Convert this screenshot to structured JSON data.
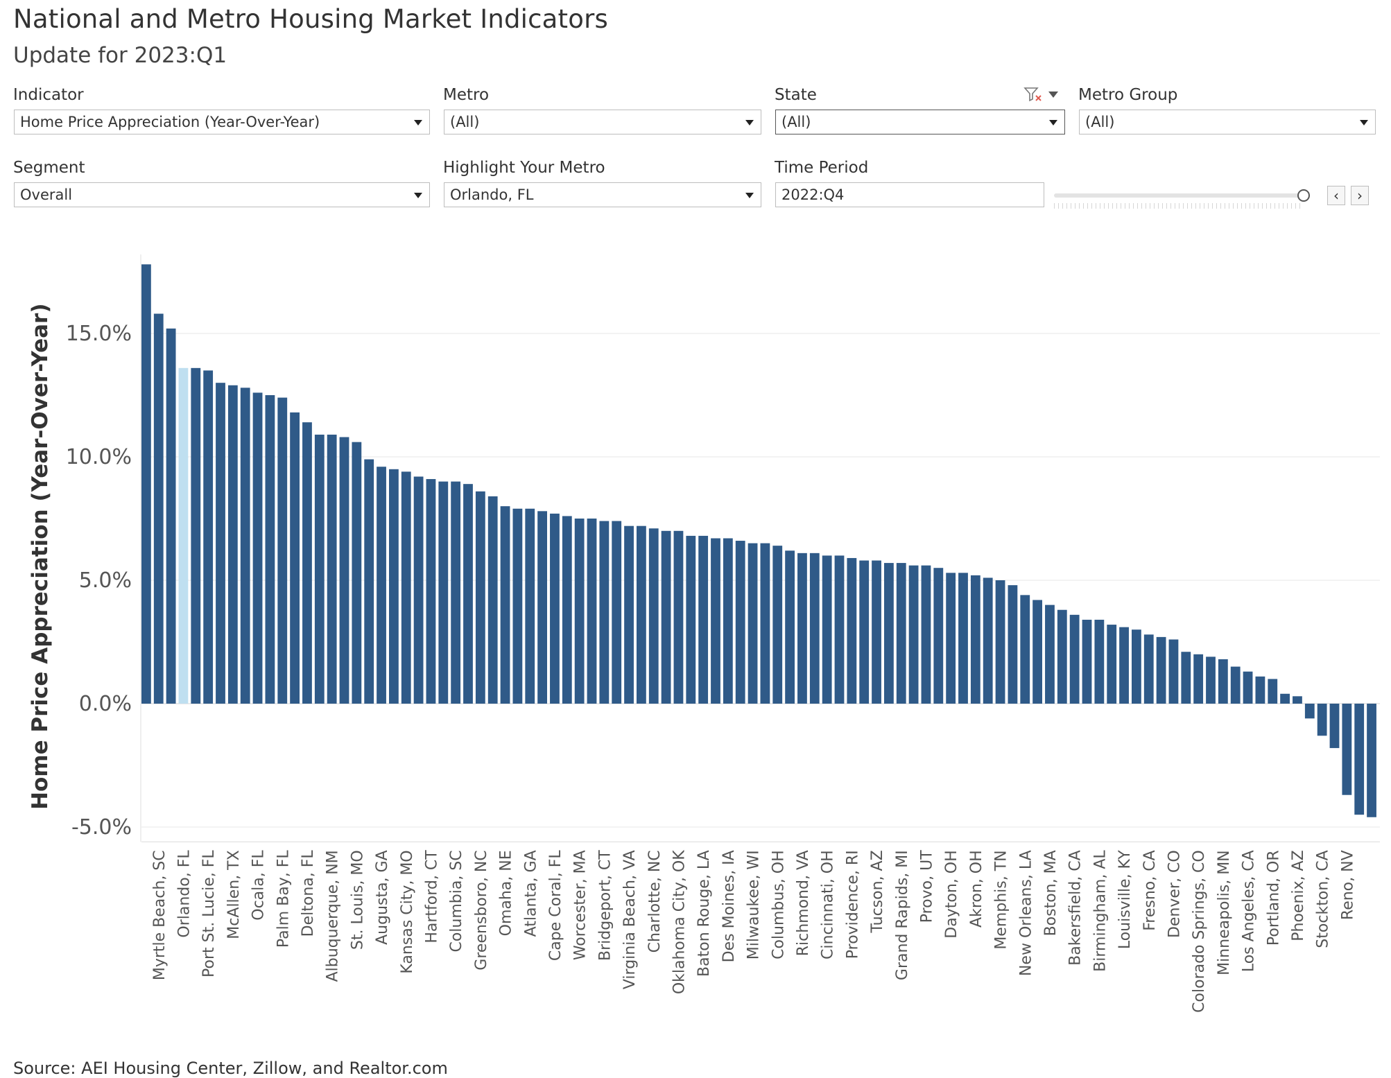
{
  "header": {
    "title": "National and Metro Housing Market Indicators",
    "subtitle": "Update for 2023:Q1"
  },
  "filters": {
    "indicator": {
      "label": "Indicator",
      "value": "Home Price Appreciation (Year-Over-Year)"
    },
    "metro": {
      "label": "Metro",
      "value": "(All)"
    },
    "state": {
      "label": "State",
      "value": "(All)"
    },
    "metro_group": {
      "label": "Metro Group",
      "value": "(All)"
    },
    "segment": {
      "label": "Segment",
      "value": "Overall"
    },
    "highlight": {
      "label": "Highlight Your Metro",
      "value": "Orlando, FL"
    },
    "time_period": {
      "label": "Time Period",
      "value": "2022:Q4",
      "slider_fraction": 1.0
    }
  },
  "icons": {
    "filter_clear": "filter-clear-icon",
    "prev": "chevron-left-icon",
    "next": "chevron-right-icon"
  },
  "nav": {
    "prev": "‹",
    "next": "›"
  },
  "colors": {
    "bar": "#2f5a88",
    "highlight": "#bfdff0",
    "grid": "#ececec"
  },
  "chart_data": {
    "type": "bar",
    "ylabel": "Home Price Appreciation (Year-Over-Year)",
    "ylim": [
      -5.6,
      18.2
    ],
    "yticks": [
      -5.0,
      0.0,
      5.0,
      10.0,
      15.0
    ],
    "ytick_labels": [
      "-5.0%",
      "0.0%",
      "5.0%",
      "10.0%",
      "15.0%"
    ],
    "grid": true,
    "highlight_index": 3,
    "category_labels": [
      {
        "index": 1,
        "text": "Myrtle Beach, SC"
      },
      {
        "index": 3,
        "text": "Orlando, FL"
      },
      {
        "index": 5,
        "text": "Port St. Lucie, FL"
      },
      {
        "index": 7,
        "text": "McAllen, TX"
      },
      {
        "index": 9,
        "text": "Ocala, FL"
      },
      {
        "index": 11,
        "text": "Palm Bay, FL"
      },
      {
        "index": 13,
        "text": "Deltona, FL"
      },
      {
        "index": 15,
        "text": "Albuquerque, NM"
      },
      {
        "index": 17,
        "text": "St. Louis, MO"
      },
      {
        "index": 19,
        "text": "Augusta, GA"
      },
      {
        "index": 21,
        "text": "Kansas City, MO"
      },
      {
        "index": 23,
        "text": "Hartford, CT"
      },
      {
        "index": 25,
        "text": "Columbia, SC"
      },
      {
        "index": 27,
        "text": "Greensboro, NC"
      },
      {
        "index": 29,
        "text": "Omaha, NE"
      },
      {
        "index": 31,
        "text": "Atlanta, GA"
      },
      {
        "index": 33,
        "text": "Cape Coral, FL"
      },
      {
        "index": 35,
        "text": "Worcester, MA"
      },
      {
        "index": 37,
        "text": "Bridgeport, CT"
      },
      {
        "index": 39,
        "text": "Virginia Beach, VA"
      },
      {
        "index": 41,
        "text": "Charlotte, NC"
      },
      {
        "index": 43,
        "text": "Oklahoma City, OK"
      },
      {
        "index": 45,
        "text": "Baton Rouge, LA"
      },
      {
        "index": 47,
        "text": "Des Moines, IA"
      },
      {
        "index": 49,
        "text": "Milwaukee, WI"
      },
      {
        "index": 51,
        "text": "Columbus, OH"
      },
      {
        "index": 53,
        "text": "Richmond, VA"
      },
      {
        "index": 55,
        "text": "Cincinnati, OH"
      },
      {
        "index": 57,
        "text": "Providence, RI"
      },
      {
        "index": 59,
        "text": "Tucson, AZ"
      },
      {
        "index": 61,
        "text": "Grand Rapids, MI"
      },
      {
        "index": 63,
        "text": "Provo, UT"
      },
      {
        "index": 65,
        "text": "Dayton, OH"
      },
      {
        "index": 67,
        "text": "Akron, OH"
      },
      {
        "index": 69,
        "text": "Memphis, TN"
      },
      {
        "index": 71,
        "text": "New Orleans, LA"
      },
      {
        "index": 73,
        "text": "Boston, MA"
      },
      {
        "index": 75,
        "text": "Bakersfield, CA"
      },
      {
        "index": 77,
        "text": "Birmingham, AL"
      },
      {
        "index": 79,
        "text": "Louisville, KY"
      },
      {
        "index": 81,
        "text": "Fresno, CA"
      },
      {
        "index": 83,
        "text": "Denver, CO"
      },
      {
        "index": 85,
        "text": "Colorado Springs, CO"
      },
      {
        "index": 87,
        "text": "Minneapolis, MN"
      },
      {
        "index": 89,
        "text": "Los Angeles, CA"
      },
      {
        "index": 91,
        "text": "Portland, OR"
      },
      {
        "index": 93,
        "text": "Phoenix, AZ"
      },
      {
        "index": 95,
        "text": "Stockton, CA"
      },
      {
        "index": 97,
        "text": "Reno, NV"
      }
    ],
    "values": [
      17.8,
      15.8,
      15.2,
      13.6,
      13.6,
      13.5,
      13.0,
      12.9,
      12.8,
      12.6,
      12.5,
      12.4,
      11.8,
      11.4,
      10.9,
      10.9,
      10.8,
      10.6,
      9.9,
      9.6,
      9.5,
      9.4,
      9.2,
      9.1,
      9.0,
      9.0,
      8.9,
      8.6,
      8.4,
      8.0,
      7.9,
      7.9,
      7.8,
      7.7,
      7.6,
      7.5,
      7.5,
      7.4,
      7.4,
      7.2,
      7.2,
      7.1,
      7.0,
      7.0,
      6.8,
      6.8,
      6.7,
      6.7,
      6.6,
      6.5,
      6.5,
      6.4,
      6.2,
      6.1,
      6.1,
      6.0,
      6.0,
      5.9,
      5.8,
      5.8,
      5.7,
      5.7,
      5.6,
      5.6,
      5.5,
      5.3,
      5.3,
      5.2,
      5.1,
      5.0,
      4.8,
      4.4,
      4.2,
      4.0,
      3.8,
      3.6,
      3.4,
      3.4,
      3.2,
      3.1,
      3.0,
      2.8,
      2.7,
      2.6,
      2.1,
      2.0,
      1.9,
      1.8,
      1.5,
      1.3,
      1.1,
      1.0,
      0.4,
      0.3,
      -0.6,
      -1.3,
      -1.8,
      -3.7,
      -4.5,
      -4.6
    ]
  },
  "footer": {
    "source": "Source: AEI Housing Center, Zillow, and Realtor.com"
  }
}
